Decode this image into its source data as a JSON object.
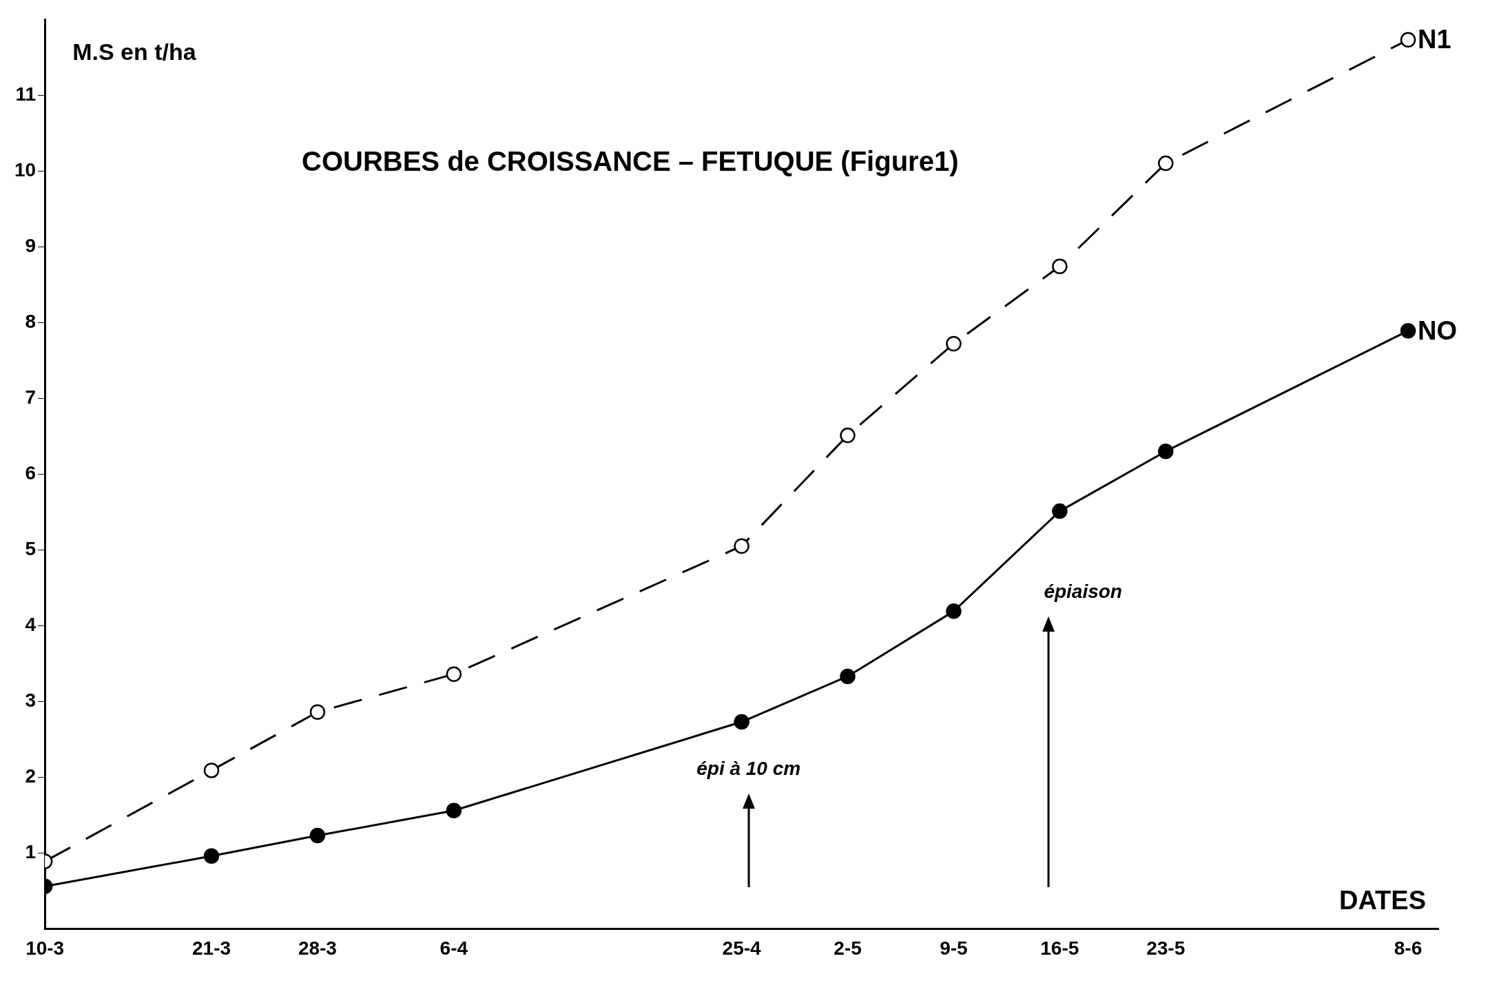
{
  "chart_data": {
    "type": "line",
    "title": "COURBES de CROISSANCE – FETUQUE (Figure1)",
    "ylabel": "M.S en t/ha",
    "xlabel": "DATES",
    "x": [
      "--03-10",
      "--03-21",
      "--03-28",
      "--04-06",
      "--04-25",
      "--05-02",
      "--05-09",
      "--05-16",
      "--05-23",
      "--06-08"
    ],
    "series": [
      {
        "name": "N1",
        "color": "#000000",
        "line_style": "dashed",
        "values": [
          0.89,
          2.09,
          2.86,
          3.36,
          5.05,
          6.51,
          7.72,
          8.74,
          10.1,
          11.73
        ]
      },
      {
        "name": "NO",
        "color": "#000000",
        "line_style": "solid",
        "values": [
          0.56,
          0.96,
          1.23,
          1.56,
          2.73,
          3.33,
          4.19,
          5.51,
          6.3,
          7.89
        ]
      }
    ],
    "marker": "circle",
    "grid": false,
    "legend": false,
    "xlim": [
      "--03-10",
      "--06-10"
    ],
    "xticks": [
      {
        "value": "--03-10",
        "label": "10-3"
      },
      {
        "value": "--03-21",
        "label": "21-3"
      },
      {
        "value": "--03-28",
        "label": "28-3"
      },
      {
        "value": "--04-06",
        "label": "6-4"
      },
      {
        "value": "--04-25",
        "label": "25-4"
      },
      {
        "value": "--05-02",
        "label": "2-5"
      },
      {
        "value": "--05-09",
        "label": "9-5"
      },
      {
        "value": "--05-16",
        "label": "16-5"
      },
      {
        "value": "--05-23",
        "label": "23-5"
      },
      {
        "value": "--06-08",
        "label": "8-6"
      }
    ],
    "ylim": [
      0,
      12
    ],
    "yticks": [
      1,
      2,
      3,
      4,
      5,
      6,
      7,
      8,
      9,
      10,
      11
    ],
    "annotations": [
      "épi à 10 cm",
      "épiaison"
    ]
  }
}
